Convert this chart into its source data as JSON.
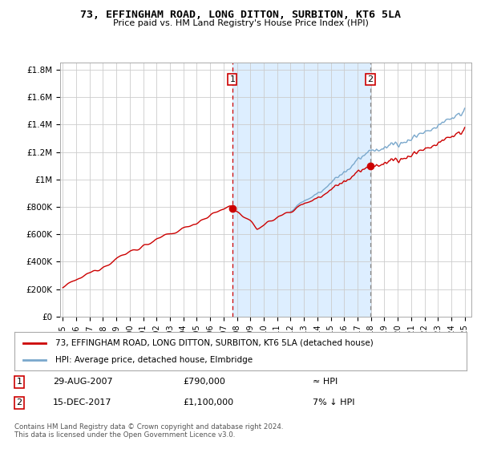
{
  "title": "73, EFFINGHAM ROAD, LONG DITTON, SURBITON, KT6 5LA",
  "subtitle": "Price paid vs. HM Land Registry's House Price Index (HPI)",
  "ylabel_ticks": [
    "£0",
    "£200K",
    "£400K",
    "£600K",
    "£800K",
    "£1M",
    "£1.2M",
    "£1.4M",
    "£1.6M",
    "£1.8M"
  ],
  "ytick_values": [
    0,
    200000,
    400000,
    600000,
    800000,
    1000000,
    1200000,
    1400000,
    1600000,
    1800000
  ],
  "ylim": [
    0,
    1850000
  ],
  "xlim_start": 1994.8,
  "xlim_end": 2025.5,
  "marker1_x": 2007.66,
  "marker1_y": 790000,
  "marker2_x": 2017.96,
  "marker2_y": 1100000,
  "legend_line1": "73, EFFINGHAM ROAD, LONG DITTON, SURBITON, KT6 5LA (detached house)",
  "legend_line2": "HPI: Average price, detached house, Elmbridge",
  "annotation1_date": "29-AUG-2007",
  "annotation1_price": "£790,000",
  "annotation1_hpi": "≈ HPI",
  "annotation2_date": "15-DEC-2017",
  "annotation2_price": "£1,100,000",
  "annotation2_hpi": "7% ↓ HPI",
  "footer": "Contains HM Land Registry data © Crown copyright and database right 2024.\nThis data is licensed under the Open Government Licence v3.0.",
  "line_color_red": "#cc0000",
  "line_color_blue": "#7aa8cc",
  "shade_color": "#ddeeff",
  "background_color": "#ffffff",
  "grid_color": "#cccccc"
}
